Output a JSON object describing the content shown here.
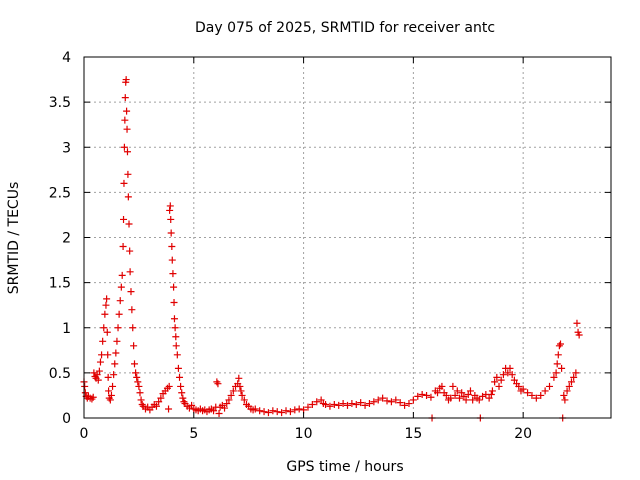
{
  "chart_data": {
    "type": "scatter",
    "title": "Day 075 of 2025, SRMTID for receiver antc",
    "xlabel": "GPS time / hours",
    "ylabel": "SRMTID / TECUs",
    "xlim": [
      0,
      24
    ],
    "ylim": [
      0,
      4
    ],
    "x_ticks": [
      0,
      5,
      10,
      15,
      20
    ],
    "x_tick_labels": [
      "0",
      "5",
      "10",
      "15",
      "20"
    ],
    "y_ticks": [
      0,
      0.5,
      1,
      1.5,
      2,
      2.5,
      3,
      3.5,
      4
    ],
    "y_tick_labels": [
      "0",
      "0.5",
      "1",
      "1.5",
      "2",
      "2.5",
      "3",
      "3.5",
      "4"
    ],
    "grid": true,
    "marker": "+",
    "color": "#e00000",
    "series": [
      {
        "name": "SRMTID",
        "points": [
          [
            0.0,
            0.4
          ],
          [
            0.03,
            0.35
          ],
          [
            0.06,
            0.28
          ],
          [
            0.1,
            0.24
          ],
          [
            0.15,
            0.22
          ],
          [
            0.2,
            0.24
          ],
          [
            0.28,
            0.22
          ],
          [
            0.36,
            0.21
          ],
          [
            0.42,
            0.23
          ],
          [
            0.45,
            0.5
          ],
          [
            0.5,
            0.46
          ],
          [
            0.55,
            0.44
          ],
          [
            0.6,
            0.48
          ],
          [
            0.65,
            0.42
          ],
          [
            0.7,
            0.52
          ],
          [
            0.75,
            0.62
          ],
          [
            0.8,
            0.7
          ],
          [
            0.85,
            0.85
          ],
          [
            0.9,
            1.0
          ],
          [
            0.95,
            1.15
          ],
          [
            1.0,
            1.25
          ],
          [
            1.03,
            1.32
          ],
          [
            1.06,
            0.95
          ],
          [
            1.08,
            0.7
          ],
          [
            1.1,
            0.45
          ],
          [
            1.12,
            0.3
          ],
          [
            1.15,
            0.22
          ],
          [
            1.2,
            0.2
          ],
          [
            1.25,
            0.25
          ],
          [
            1.3,
            0.35
          ],
          [
            1.35,
            0.48
          ],
          [
            1.4,
            0.6
          ],
          [
            1.45,
            0.72
          ],
          [
            1.5,
            0.85
          ],
          [
            1.55,
            1.0
          ],
          [
            1.6,
            1.15
          ],
          [
            1.65,
            1.3
          ],
          [
            1.7,
            1.45
          ],
          [
            1.74,
            1.58
          ],
          [
            1.78,
            1.9
          ],
          [
            1.8,
            2.2
          ],
          [
            1.82,
            2.6
          ],
          [
            1.84,
            3.0
          ],
          [
            1.86,
            3.3
          ],
          [
            1.88,
            3.55
          ],
          [
            1.9,
            3.72
          ],
          [
            1.92,
            3.75
          ],
          [
            1.94,
            3.4
          ],
          [
            1.96,
            3.2
          ],
          [
            1.98,
            2.95
          ],
          [
            2.0,
            2.7
          ],
          [
            2.02,
            2.45
          ],
          [
            2.05,
            2.15
          ],
          [
            2.08,
            1.85
          ],
          [
            2.1,
            1.62
          ],
          [
            2.14,
            1.4
          ],
          [
            2.18,
            1.2
          ],
          [
            2.22,
            1.0
          ],
          [
            2.26,
            0.8
          ],
          [
            2.3,
            0.6
          ],
          [
            2.35,
            0.5
          ],
          [
            2.4,
            0.45
          ],
          [
            2.45,
            0.4
          ],
          [
            2.5,
            0.35
          ],
          [
            2.55,
            0.28
          ],
          [
            2.6,
            0.2
          ],
          [
            2.65,
            0.15
          ],
          [
            2.7,
            0.13
          ],
          [
            2.8,
            0.1
          ],
          [
            2.9,
            0.12
          ],
          [
            3.0,
            0.09
          ],
          [
            3.1,
            0.12
          ],
          [
            3.2,
            0.15
          ],
          [
            3.3,
            0.13
          ],
          [
            3.4,
            0.18
          ],
          [
            3.5,
            0.22
          ],
          [
            3.6,
            0.27
          ],
          [
            3.7,
            0.3
          ],
          [
            3.8,
            0.33
          ],
          [
            3.85,
            0.1
          ],
          [
            3.88,
            0.35
          ],
          [
            3.9,
            2.3
          ],
          [
            3.93,
            2.35
          ],
          [
            3.95,
            2.2
          ],
          [
            3.97,
            2.05
          ],
          [
            4.0,
            1.9
          ],
          [
            4.02,
            1.75
          ],
          [
            4.05,
            1.6
          ],
          [
            4.08,
            1.45
          ],
          [
            4.1,
            1.28
          ],
          [
            4.12,
            1.1
          ],
          [
            4.15,
            1.0
          ],
          [
            4.18,
            0.9
          ],
          [
            4.2,
            0.8
          ],
          [
            4.25,
            0.7
          ],
          [
            4.3,
            0.55
          ],
          [
            4.35,
            0.45
          ],
          [
            4.4,
            0.35
          ],
          [
            4.45,
            0.28
          ],
          [
            4.5,
            0.22
          ],
          [
            4.55,
            0.18
          ],
          [
            4.6,
            0.16
          ],
          [
            4.7,
            0.13
          ],
          [
            4.8,
            0.11
          ],
          [
            4.9,
            0.14
          ],
          [
            5.0,
            0.1
          ],
          [
            5.1,
            0.09
          ],
          [
            5.2,
            0.08
          ],
          [
            5.3,
            0.1
          ],
          [
            5.4,
            0.08
          ],
          [
            5.5,
            0.09
          ],
          [
            5.6,
            0.07
          ],
          [
            5.7,
            0.09
          ],
          [
            5.8,
            0.1
          ],
          [
            5.9,
            0.08
          ],
          [
            6.0,
            0.12
          ],
          [
            6.05,
            0.4
          ],
          [
            6.1,
            0.38
          ],
          [
            6.15,
            0.05
          ],
          [
            6.2,
            0.12
          ],
          [
            6.3,
            0.14
          ],
          [
            6.4,
            0.11
          ],
          [
            6.5,
            0.16
          ],
          [
            6.6,
            0.2
          ],
          [
            6.7,
            0.25
          ],
          [
            6.8,
            0.3
          ],
          [
            6.9,
            0.35
          ],
          [
            7.0,
            0.38
          ],
          [
            7.05,
            0.44
          ],
          [
            7.1,
            0.35
          ],
          [
            7.15,
            0.3
          ],
          [
            7.2,
            0.25
          ],
          [
            7.3,
            0.2
          ],
          [
            7.4,
            0.15
          ],
          [
            7.5,
            0.13
          ],
          [
            7.6,
            0.1
          ],
          [
            7.7,
            0.09
          ],
          [
            7.8,
            0.1
          ],
          [
            8.0,
            0.08
          ],
          [
            8.2,
            0.07
          ],
          [
            8.4,
            0.06
          ],
          [
            8.6,
            0.08
          ],
          [
            8.8,
            0.07
          ],
          [
            9.0,
            0.06
          ],
          [
            9.2,
            0.08
          ],
          [
            9.4,
            0.07
          ],
          [
            9.6,
            0.09
          ],
          [
            9.8,
            0.1
          ],
          [
            10.0,
            0.09
          ],
          [
            10.2,
            0.12
          ],
          [
            10.4,
            0.15
          ],
          [
            10.6,
            0.18
          ],
          [
            10.8,
            0.2
          ],
          [
            10.9,
            0.16
          ],
          [
            11.0,
            0.15
          ],
          [
            11.2,
            0.13
          ],
          [
            11.4,
            0.15
          ],
          [
            11.6,
            0.14
          ],
          [
            11.8,
            0.16
          ],
          [
            12.0,
            0.14
          ],
          [
            12.2,
            0.16
          ],
          [
            12.4,
            0.15
          ],
          [
            12.6,
            0.17
          ],
          [
            12.8,
            0.14
          ],
          [
            13.0,
            0.16
          ],
          [
            13.2,
            0.18
          ],
          [
            13.4,
            0.2
          ],
          [
            13.6,
            0.22
          ],
          [
            13.8,
            0.19
          ],
          [
            14.0,
            0.18
          ],
          [
            14.2,
            0.2
          ],
          [
            14.4,
            0.17
          ],
          [
            14.6,
            0.14
          ],
          [
            14.8,
            0.16
          ],
          [
            15.0,
            0.2
          ],
          [
            15.2,
            0.24
          ],
          [
            15.4,
            0.26
          ],
          [
            15.6,
            0.25
          ],
          [
            15.8,
            0.23
          ],
          [
            15.85,
            0.0
          ],
          [
            16.0,
            0.3
          ],
          [
            16.1,
            0.28
          ],
          [
            16.2,
            0.33
          ],
          [
            16.3,
            0.35
          ],
          [
            16.4,
            0.28
          ],
          [
            16.5,
            0.25
          ],
          [
            16.6,
            0.2
          ],
          [
            16.7,
            0.22
          ],
          [
            16.8,
            0.35
          ],
          [
            16.9,
            0.25
          ],
          [
            17.0,
            0.3
          ],
          [
            17.1,
            0.22
          ],
          [
            17.2,
            0.28
          ],
          [
            17.3,
            0.24
          ],
          [
            17.4,
            0.2
          ],
          [
            17.5,
            0.26
          ],
          [
            17.6,
            0.3
          ],
          [
            17.7,
            0.2
          ],
          [
            17.8,
            0.25
          ],
          [
            17.9,
            0.22
          ],
          [
            18.0,
            0.2
          ],
          [
            18.05,
            0.0
          ],
          [
            18.15,
            0.24
          ],
          [
            18.3,
            0.26
          ],
          [
            18.45,
            0.22
          ],
          [
            18.55,
            0.26
          ],
          [
            18.6,
            0.3
          ],
          [
            18.7,
            0.4
          ],
          [
            18.8,
            0.45
          ],
          [
            18.9,
            0.35
          ],
          [
            19.0,
            0.42
          ],
          [
            19.1,
            0.48
          ],
          [
            19.2,
            0.55
          ],
          [
            19.3,
            0.5
          ],
          [
            19.4,
            0.55
          ],
          [
            19.5,
            0.48
          ],
          [
            19.6,
            0.42
          ],
          [
            19.7,
            0.38
          ],
          [
            19.8,
            0.35
          ],
          [
            19.9,
            0.3
          ],
          [
            20.0,
            0.32
          ],
          [
            20.2,
            0.28
          ],
          [
            20.4,
            0.25
          ],
          [
            20.6,
            0.22
          ],
          [
            20.8,
            0.25
          ],
          [
            21.0,
            0.3
          ],
          [
            21.2,
            0.35
          ],
          [
            21.4,
            0.45
          ],
          [
            21.5,
            0.5
          ],
          [
            21.55,
            0.6
          ],
          [
            21.6,
            0.7
          ],
          [
            21.65,
            0.8
          ],
          [
            21.7,
            0.82
          ],
          [
            21.75,
            0.55
          ],
          [
            21.8,
            0.0
          ],
          [
            21.85,
            0.25
          ],
          [
            21.9,
            0.2
          ],
          [
            22.0,
            0.3
          ],
          [
            22.1,
            0.35
          ],
          [
            22.2,
            0.4
          ],
          [
            22.3,
            0.45
          ],
          [
            22.4,
            0.5
          ],
          [
            22.45,
            1.05
          ],
          [
            22.5,
            0.95
          ],
          [
            22.55,
            0.92
          ]
        ]
      }
    ]
  }
}
